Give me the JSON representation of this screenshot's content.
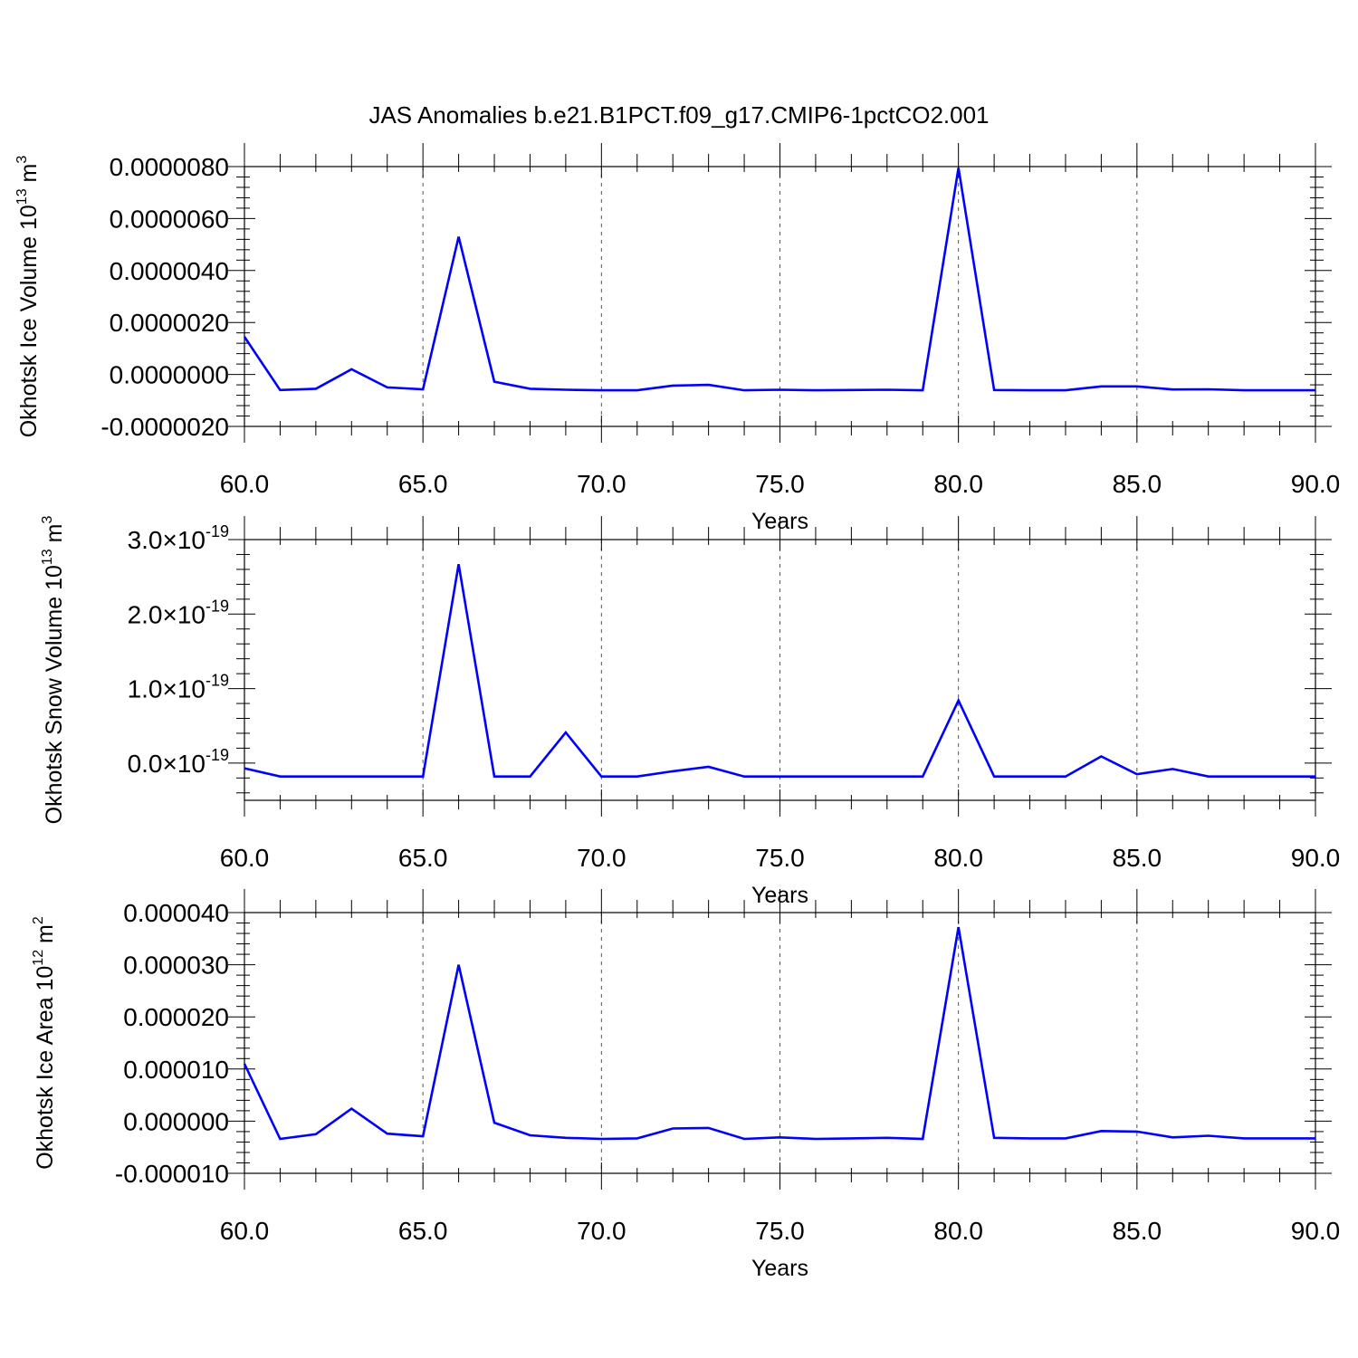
{
  "title": "JAS Anomalies b.e21.B1PCT.f09_g17.CMIP6-1pctCO2.001",
  "colors": {
    "line": "#0000ff",
    "frame": "#000000",
    "grid": "#555555"
  },
  "chart_data": [
    {
      "type": "line",
      "ylabel_main": "Okhotsk Ice Volume 10",
      "ylabel_exp": "13",
      "ylabel_unit": " m",
      "ylabel_unit_exp": "3",
      "xlabel": "Years",
      "xlim": [
        60,
        90
      ],
      "ylim": [
        -2e-06,
        8e-06
      ],
      "xticks": [
        60,
        65,
        70,
        75,
        80,
        85,
        90
      ],
      "xtick_labels": [
        "60.0",
        "65.0",
        "70.0",
        "75.0",
        "80.0",
        "85.0",
        "90.0"
      ],
      "yticks": [
        -2e-06,
        0,
        2e-06,
        4e-06,
        6e-06,
        8e-06
      ],
      "ytick_labels": [
        "-0.0000020",
        "0.0000000",
        "0.0000020",
        "0.0000040",
        "0.0000060",
        "0.0000080"
      ],
      "x": [
        60,
        61,
        62,
        63,
        64,
        65,
        66,
        67,
        68,
        69,
        70,
        71,
        72,
        73,
        74,
        75,
        76,
        77,
        78,
        79,
        80,
        81,
        82,
        83,
        84,
        85,
        86,
        87,
        88,
        89,
        90
      ],
      "y": [
        1.45e-06,
        -6e-07,
        -5.5e-07,
        2e-07,
        -5e-07,
        -5.7e-07,
        5.3e-06,
        -2.8e-07,
        -5.5e-07,
        -5.9e-07,
        -6.1e-07,
        -6.1e-07,
        -4.3e-07,
        -4e-07,
        -6.1e-07,
        -5.9e-07,
        -6.1e-07,
        -6e-07,
        -5.9e-07,
        -6.1e-07,
        7.95e-06,
        -6e-07,
        -6.1e-07,
        -6.1e-07,
        -4.6e-07,
        -4.6e-07,
        -5.8e-07,
        -5.7e-07,
        -6.1e-07,
        -6.1e-07,
        -6.1e-07
      ]
    },
    {
      "type": "line",
      "ylabel_main": "Okhotsk Snow Volume 10",
      "ylabel_exp": "13",
      "ylabel_unit": " m",
      "ylabel_unit_exp": "3",
      "xlabel": "Years",
      "xlim": [
        60,
        90
      ],
      "ylim": [
        -5e-20,
        3e-19
      ],
      "xticks": [
        60,
        65,
        70,
        75,
        80,
        85,
        90
      ],
      "xtick_labels": [
        "60.0",
        "65.0",
        "70.0",
        "75.0",
        "80.0",
        "85.0",
        "90.0"
      ],
      "yticks": [
        0,
        1e-19,
        2e-19,
        3e-19
      ],
      "ytick_mantissas": [
        "0.0",
        "1.0",
        "2.0",
        "3.0"
      ],
      "ytick_base": "10",
      "ytick_exp": "-19",
      "x": [
        60,
        61,
        62,
        63,
        64,
        65,
        66,
        67,
        68,
        69,
        70,
        71,
        72,
        73,
        74,
        75,
        76,
        77,
        78,
        79,
        80,
        81,
        82,
        83,
        84,
        85,
        86,
        87,
        88,
        89,
        90
      ],
      "y": [
        -7e-21,
        -1.8e-20,
        -1.8e-20,
        -1.8e-20,
        -1.8e-20,
        -1.8e-20,
        2.67e-19,
        -1.8e-20,
        -1.8e-20,
        4.1e-20,
        -1.8e-20,
        -1.8e-20,
        -1.1e-20,
        -5e-21,
        -1.8e-20,
        -1.8e-20,
        -1.8e-20,
        -1.8e-20,
        -1.8e-20,
        -1.8e-20,
        8.4e-20,
        -1.8e-20,
        -1.8e-20,
        -1.8e-20,
        9e-21,
        -1.5e-20,
        -8e-21,
        -1.8e-20,
        -1.8e-20,
        -1.8e-20,
        -1.8e-20
      ]
    },
    {
      "type": "line",
      "ylabel_main": "Okhotsk Ice Area 10",
      "ylabel_exp": "12",
      "ylabel_unit": " m",
      "ylabel_unit_exp": "2",
      "xlabel": "Years",
      "xlim": [
        60,
        90
      ],
      "ylim": [
        -1e-05,
        4e-05
      ],
      "xticks": [
        60,
        65,
        70,
        75,
        80,
        85,
        90
      ],
      "xtick_labels": [
        "60.0",
        "65.0",
        "70.0",
        "75.0",
        "80.0",
        "85.0",
        "90.0"
      ],
      "yticks": [
        -1e-05,
        0,
        1e-05,
        2e-05,
        3e-05,
        4e-05
      ],
      "ytick_labels": [
        "-0.000010",
        "0.000000",
        "0.000010",
        "0.000020",
        "0.000030",
        "0.000040"
      ],
      "x": [
        60,
        61,
        62,
        63,
        64,
        65,
        66,
        67,
        68,
        69,
        70,
        71,
        72,
        73,
        74,
        75,
        76,
        77,
        78,
        79,
        80,
        81,
        82,
        83,
        84,
        85,
        86,
        87,
        88,
        89,
        90
      ],
      "y": [
        1.1e-05,
        -3.4e-06,
        -2.5e-06,
        2.4e-06,
        -2.4e-06,
        -2.9e-06,
        3e-05,
        -3e-07,
        -2.7e-06,
        -3.2e-06,
        -3.4e-06,
        -3.3e-06,
        -1.4e-06,
        -1.3e-06,
        -3.4e-06,
        -3.1e-06,
        -3.4e-06,
        -3.3e-06,
        -3.2e-06,
        -3.4e-06,
        3.72e-05,
        -3.2e-06,
        -3.3e-06,
        -3.3e-06,
        -1.9e-06,
        -2e-06,
        -3.1e-06,
        -2.8e-06,
        -3.3e-06,
        -3.3e-06,
        -3.3e-06
      ]
    }
  ]
}
